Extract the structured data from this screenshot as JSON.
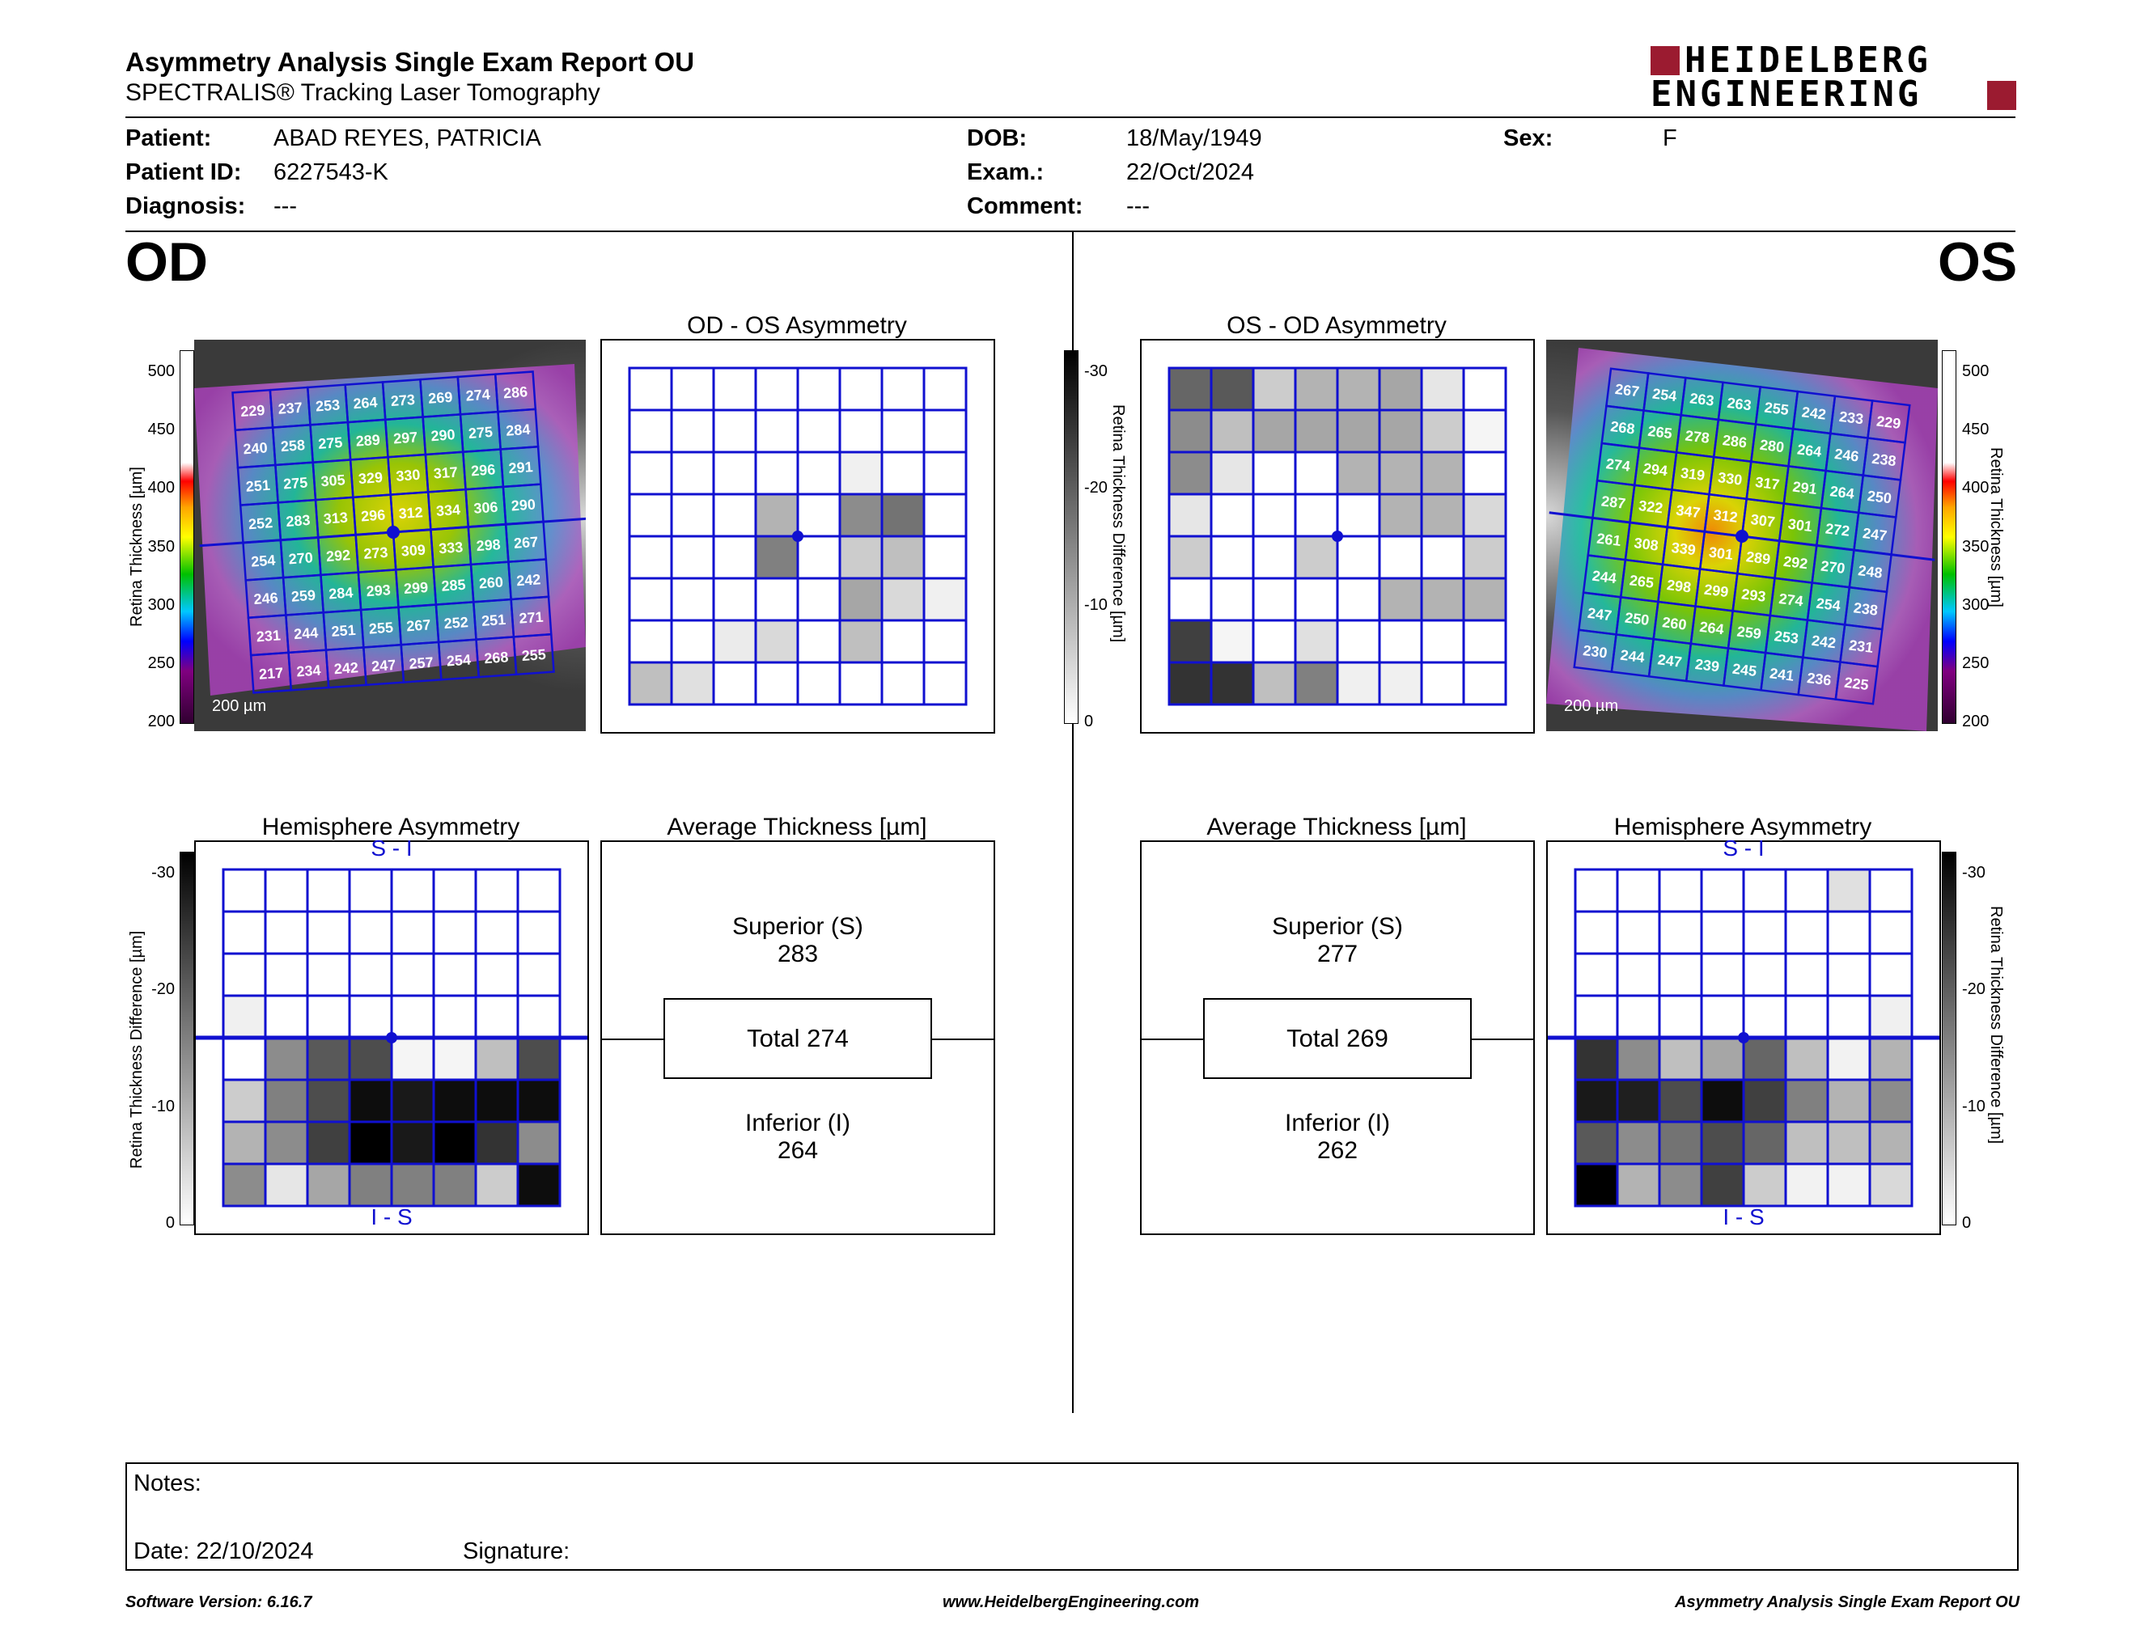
{
  "header": {
    "title": "Asymmetry Analysis Single Exam Report OU",
    "subtitle": "SPECTRALIS® Tracking Laser Tomography",
    "logo_line1": "HEIDELBERG",
    "logo_line2": "ENGINEERING"
  },
  "patient": {
    "patient_label": "Patient:",
    "patient_value": "ABAD REYES, PATRICIA",
    "id_label": "Patient ID:",
    "id_value": "6227543-K",
    "diagnosis_label": "Diagnosis:",
    "diagnosis_value": "---",
    "dob_label": "DOB:",
    "dob_value": "18/May/1949",
    "exam_label": "Exam.:",
    "exam_value": "22/Oct/2024",
    "comment_label": "Comment:",
    "comment_value": "---",
    "sex_label": "Sex:",
    "sex_value": "F"
  },
  "od": {
    "eye_label": "OD",
    "asym_title": "OD - OS Asymmetry",
    "hemi_title": "Hemisphere Asymmetry",
    "avg_title": "Average Thickness [µm]",
    "superior_label": "Superior (S)",
    "superior_value": "283",
    "total_label": "Total 274",
    "inferior_label": "Inferior (I)",
    "inferior_value": "264",
    "hemi_top": "S - I",
    "hemi_bottom": "I - S",
    "scale_bar": "200 µm",
    "thickness_grid": [
      [
        "229",
        "237",
        "253",
        "264",
        "273",
        "269",
        "274",
        "286"
      ],
      [
        "240",
        "258",
        "275",
        "289",
        "297",
        "290",
        "275",
        "284"
      ],
      [
        "251",
        "275",
        "305",
        "329",
        "330",
        "317",
        "296",
        "291"
      ],
      [
        "252",
        "283",
        "313",
        "296",
        "312",
        "334",
        "306",
        "290"
      ],
      [
        "254",
        "270",
        "292",
        "273",
        "309",
        "333",
        "298",
        "267"
      ],
      [
        "246",
        "259",
        "284",
        "293",
        "299",
        "285",
        "260",
        "242"
      ],
      [
        "231",
        "244",
        "251",
        "255",
        "267",
        "252",
        "251",
        "271"
      ],
      [
        "217",
        "234",
        "242",
        "247",
        "257",
        "254",
        "268",
        "255"
      ]
    ],
    "asym_levels": [
      [
        0,
        0,
        0,
        0,
        0,
        0,
        0,
        0
      ],
      [
        0,
        0,
        0,
        0,
        0,
        0,
        0,
        0
      ],
      [
        0,
        0,
        0,
        0,
        0,
        0.06,
        0,
        0
      ],
      [
        0,
        0,
        0,
        0.3,
        0,
        0.45,
        0.55,
        0
      ],
      [
        0,
        0,
        0,
        0.5,
        0,
        0.2,
        0.25,
        0
      ],
      [
        0,
        0,
        0,
        0,
        0,
        0.35,
        0.15,
        0.06
      ],
      [
        0,
        0,
        0.08,
        0.15,
        0,
        0.25,
        0,
        0
      ],
      [
        0.25,
        0.12,
        0,
        0,
        0,
        0,
        0,
        0
      ]
    ],
    "hemi_levels": [
      [
        0,
        0,
        0,
        0,
        0,
        0,
        0,
        0
      ],
      [
        0,
        0,
        0,
        0,
        0,
        0,
        0,
        0
      ],
      [
        0,
        0,
        0,
        0,
        0,
        0,
        0,
        0
      ],
      [
        0.06,
        0,
        0,
        0,
        0,
        0,
        0,
        0
      ],
      [
        0,
        0.45,
        0.65,
        0.7,
        0.04,
        0.04,
        0.25,
        0.7
      ],
      [
        0.2,
        0.5,
        0.7,
        0.95,
        0.9,
        0.95,
        0.95,
        0.95
      ],
      [
        0.3,
        0.45,
        0.75,
        1.0,
        0.9,
        1.0,
        0.8,
        0.45
      ],
      [
        0.45,
        0.1,
        0.35,
        0.5,
        0.5,
        0.5,
        0.2,
        0.95
      ]
    ]
  },
  "os": {
    "eye_label": "OS",
    "asym_title": "OS - OD Asymmetry",
    "hemi_title": "Hemisphere Asymmetry",
    "avg_title": "Average Thickness [µm]",
    "superior_label": "Superior (S)",
    "superior_value": "277",
    "total_label": "Total 269",
    "inferior_label": "Inferior (I)",
    "inferior_value": "262",
    "hemi_top": "S - I",
    "hemi_bottom": "I - S",
    "scale_bar": "200 µm",
    "thickness_grid": [
      [
        "267",
        "254",
        "263",
        "263",
        "255",
        "242",
        "233",
        "229"
      ],
      [
        "268",
        "265",
        "278",
        "286",
        "280",
        "264",
        "246",
        "238"
      ],
      [
        "274",
        "294",
        "319",
        "330",
        "317",
        "291",
        "264",
        "250"
      ],
      [
        "287",
        "322",
        "347",
        "312",
        "307",
        "301",
        "272",
        "247"
      ],
      [
        "261",
        "308",
        "339",
        "301",
        "289",
        "292",
        "270",
        "248"
      ],
      [
        "244",
        "265",
        "298",
        "299",
        "293",
        "274",
        "254",
        "238"
      ],
      [
        "247",
        "250",
        "260",
        "264",
        "259",
        "253",
        "242",
        "231"
      ],
      [
        "230",
        "244",
        "247",
        "239",
        "245",
        "241",
        "236",
        "225"
      ]
    ],
    "asym_levels": [
      [
        0.6,
        0.65,
        0.2,
        0.3,
        0.3,
        0.35,
        0.1,
        0
      ],
      [
        0.45,
        0.25,
        0.35,
        0.35,
        0.35,
        0.35,
        0.2,
        0.04
      ],
      [
        0.45,
        0.1,
        0,
        0,
        0.3,
        0.3,
        0.3,
        0
      ],
      [
        0.1,
        0,
        0,
        0,
        0,
        0.3,
        0.3,
        0.15
      ],
      [
        0.2,
        0,
        0,
        0.2,
        0,
        0,
        0,
        0.2
      ],
      [
        0,
        0,
        0,
        0,
        0,
        0.3,
        0.3,
        0.3
      ],
      [
        0.75,
        0.04,
        0,
        0.12,
        0,
        0,
        0,
        0
      ],
      [
        0.8,
        0.8,
        0.25,
        0.5,
        0.06,
        0.06,
        0,
        0
      ]
    ],
    "hemi_levels": [
      [
        0,
        0,
        0,
        0,
        0,
        0,
        0.12,
        0
      ],
      [
        0,
        0,
        0,
        0,
        0,
        0,
        0,
        0
      ],
      [
        0,
        0,
        0,
        0,
        0,
        0,
        0,
        0
      ],
      [
        0,
        0,
        0,
        0,
        0,
        0,
        0,
        0.06
      ],
      [
        0.8,
        0.45,
        0.25,
        0.35,
        0.6,
        0.25,
        0.05,
        0.3
      ],
      [
        0.9,
        0.88,
        0.7,
        0.95,
        0.75,
        0.5,
        0.3,
        0.45
      ],
      [
        0.65,
        0.45,
        0.55,
        0.7,
        0.6,
        0.25,
        0.25,
        0.3
      ],
      [
        1.0,
        0.3,
        0.45,
        0.75,
        0.2,
        0.05,
        0.05,
        0.15
      ]
    ]
  },
  "scales": {
    "thickness_ticks": [
      "500",
      "450",
      "400",
      "350",
      "300",
      "250",
      "200"
    ],
    "thickness_label": "Retina Thickness [µm]",
    "diff_ticks": [
      "-30",
      "-20",
      "-10",
      "0"
    ],
    "diff_label": "Retina Thickness Difference [µm]"
  },
  "notes": {
    "notes_label": "Notes:",
    "date_label": "Date: 22/10/2024",
    "signature_label": "Signature:"
  },
  "footer": {
    "software": "Software Version: 6.16.7",
    "website": "www.HeidelbergEngineering.com",
    "report": "Asymmetry Analysis Single Exam Report OU"
  },
  "colors": {
    "grid_blue": "#1010d0",
    "logo_red": "#9b1b30"
  }
}
